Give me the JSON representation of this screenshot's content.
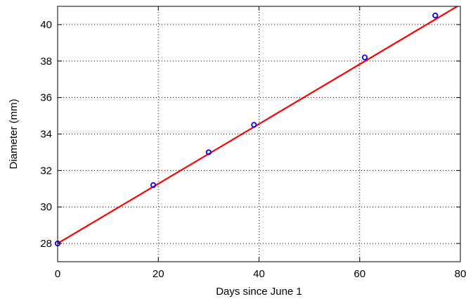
{
  "chart_data": {
    "type": "scatter",
    "title": "",
    "xlabel": "Days since June 1",
    "ylabel": "Diameter (mm)",
    "xlim": [
      0,
      80
    ],
    "ylim": [
      27,
      41
    ],
    "xticks": [
      0,
      20,
      40,
      60,
      80
    ],
    "yticks": [
      28,
      30,
      32,
      34,
      36,
      38,
      40
    ],
    "grid": true,
    "grid_style": "dotted",
    "legend": "none",
    "series": [
      {
        "type": "scatter",
        "marker": "circle",
        "color": "#0000ff",
        "x": [
          0,
          19,
          30,
          39,
          61,
          75
        ],
        "y": [
          28.0,
          31.2,
          33.0,
          34.5,
          38.2,
          40.5
        ]
      },
      {
        "type": "line",
        "color": "#ff0000",
        "x": [
          0,
          80
        ],
        "y": [
          28.0,
          41.1
        ]
      }
    ]
  }
}
